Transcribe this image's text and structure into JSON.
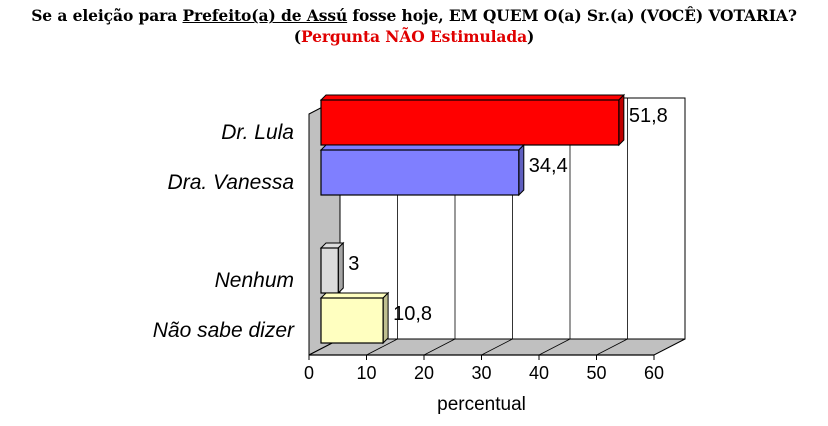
{
  "title": {
    "line1_pre": "Se a eleição para ",
    "line1_underlined": "Prefeito(a) de Assú",
    "line1_post": " fosse hoje, EM QUEM O(a) Sr.(a) (VOCÊ) VOTARIA?",
    "line2_open": "(",
    "line2_red": "Pergunta NÃO Estimulada",
    "line2_close": ")"
  },
  "colors": {
    "title_highlight": "#e00000"
  },
  "chart_data": {
    "type": "bar",
    "orientation": "horizontal",
    "three_d": true,
    "categories": [
      "Dr. Lula",
      "Dra. Vanessa",
      "Nenhum",
      "Não sabe dizer"
    ],
    "values": [
      51.8,
      34.4,
      3,
      10.8
    ],
    "value_labels": [
      "51,8",
      "34,4",
      "3",
      "10,8"
    ],
    "colors": [
      "#ff0000",
      "#7f7fff",
      "#dcdcdc",
      "#ffffc0"
    ],
    "xlabel": "percentual",
    "ylabel": "",
    "xlim": [
      0,
      60
    ],
    "ticks": [
      0,
      10,
      20,
      30,
      40,
      50,
      60
    ],
    "grid": true
  }
}
